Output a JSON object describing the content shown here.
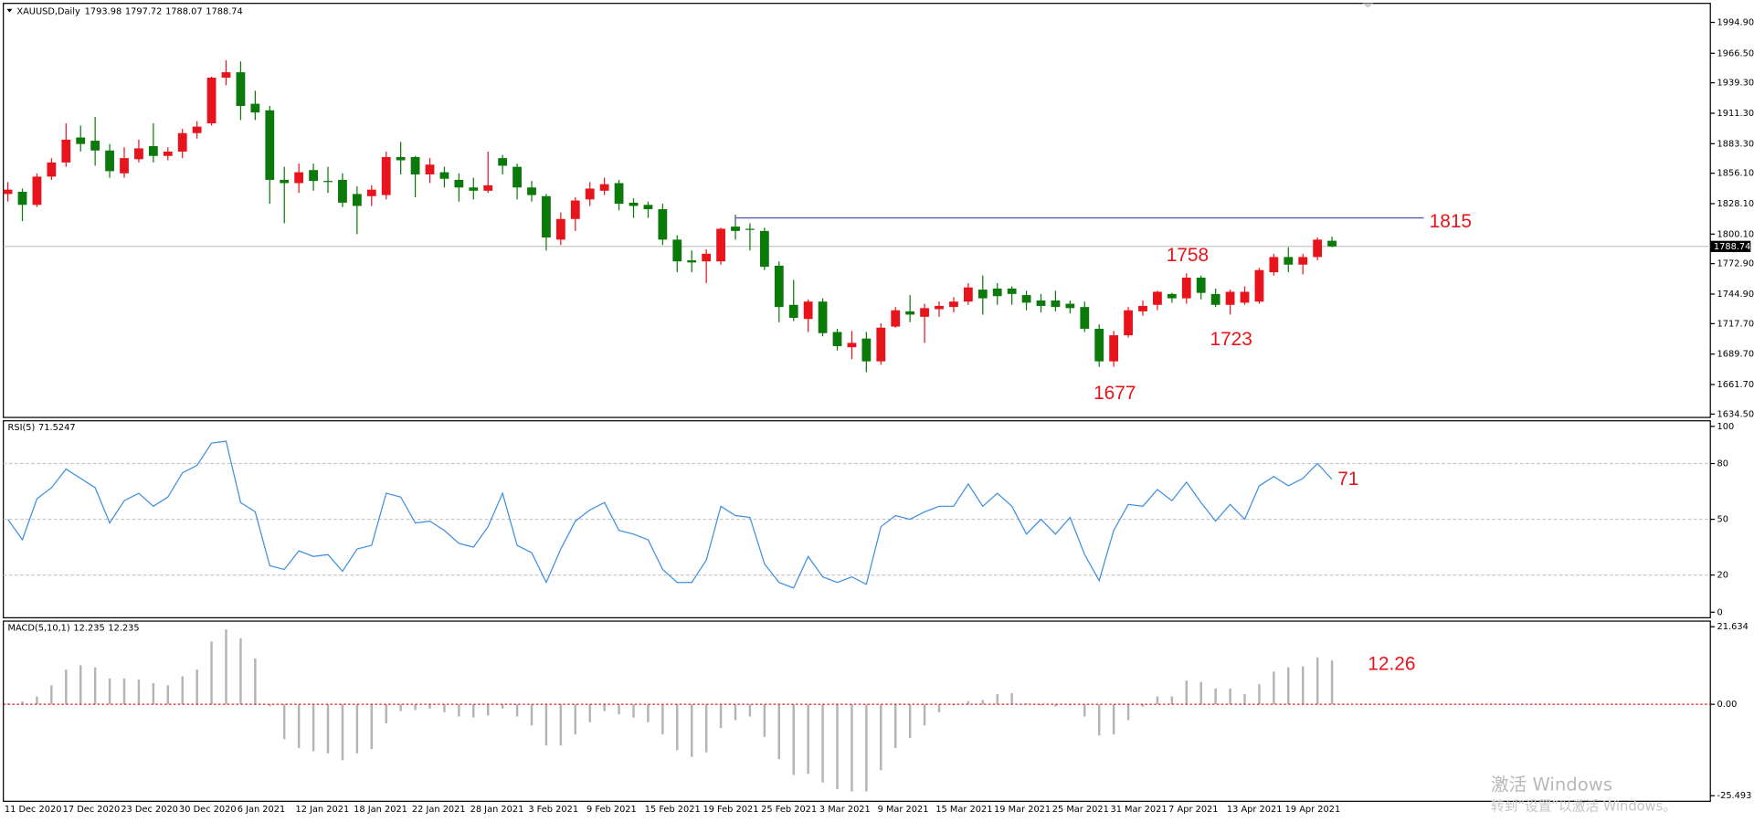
{
  "chart_data": [
    {
      "type": "candlestick",
      "title": "XAUUSD,Daily",
      "categories": [
        "11 Dec 2020",
        null,
        null,
        null,
        "17 Dec 2020",
        null,
        null,
        null,
        "23 Dec 2020",
        null,
        null,
        null,
        "30 Dec 2020",
        null,
        null,
        null,
        "6 Jan 2021",
        null,
        null,
        null,
        "12 Jan 2021",
        null,
        null,
        null,
        "18 Jan 2021",
        null,
        null,
        null,
        "22 Jan 2021",
        null,
        null,
        null,
        "28 Jan 2021",
        null,
        null,
        null,
        "3 Feb 2021",
        null,
        null,
        null,
        "9 Feb 2021",
        null,
        null,
        null,
        "15 Feb 2021",
        null,
        null,
        null,
        "19 Feb 2021",
        null,
        null,
        null,
        "25 Feb 2021",
        null,
        null,
        null,
        "3 Mar 2021",
        null,
        null,
        null,
        "9 Mar 2021",
        null,
        null,
        null,
        "15 Mar 2021",
        null,
        null,
        null,
        "19 Mar 2021",
        null,
        null,
        null,
        "25 Mar 2021",
        null,
        null,
        null,
        "31 Mar 2021",
        null,
        null,
        null,
        "7 Apr 2021",
        null,
        null,
        null,
        "13 Apr 2021",
        null,
        null,
        null,
        "19 Apr 2021",
        null,
        null,
        null
      ],
      "open": [
        1837,
        1839,
        1827,
        1853,
        1866,
        1889,
        1886,
        1877,
        1856,
        1869,
        1881,
        1872,
        1876,
        1893,
        1902,
        1944,
        1949,
        1920,
        1914,
        1850,
        1847,
        1859,
        1849,
        1850,
        1837,
        1835,
        1836,
        1871,
        1871,
        1855,
        1857,
        1850,
        1843,
        1840,
        1870,
        1862,
        1843,
        1835,
        1795,
        1814,
        1832,
        1840,
        1847,
        1829,
        1827,
        1823,
        1795,
        1776,
        1775,
        1775,
        1807,
        1805,
        1803,
        1771,
        1735,
        1722,
        1738,
        1710,
        1696,
        1704,
        1683,
        1715,
        1729,
        1724,
        1731,
        1733,
        1738,
        1749,
        1750,
        1750,
        1744,
        1739,
        1739,
        1736,
        1733,
        1713,
        1683,
        1707,
        1729,
        1735,
        1745,
        1741,
        1760,
        1745,
        1735,
        1737,
        1738,
        1765,
        1779,
        1772,
        1779,
        1793.98
      ],
      "high": [
        1848,
        1842,
        1856,
        1870,
        1902,
        1900,
        1908,
        1883,
        1880,
        1887,
        1902,
        1880,
        1897,
        1904,
        1945,
        1960,
        1959,
        1932,
        1918,
        1862,
        1865,
        1865,
        1862,
        1856,
        1844,
        1845,
        1876,
        1885,
        1872,
        1870,
        1862,
        1856,
        1852,
        1876,
        1873,
        1865,
        1849,
        1837,
        1820,
        1834,
        1848,
        1852,
        1850,
        1833,
        1830,
        1828,
        1799,
        1785,
        1786,
        1806,
        1818,
        1810,
        1806,
        1775,
        1758,
        1740,
        1741,
        1713,
        1711,
        1710,
        1718,
        1733,
        1744,
        1736,
        1738,
        1742,
        1755,
        1762,
        1755,
        1752,
        1748,
        1745,
        1748,
        1739,
        1738,
        1717,
        1711,
        1733,
        1739,
        1748,
        1746,
        1764,
        1762,
        1750,
        1749,
        1752,
        1769,
        1782,
        1788,
        1782,
        1797,
        1797.72
      ],
      "low": [
        1830,
        1812,
        1825,
        1850,
        1862,
        1876,
        1863,
        1852,
        1852,
        1866,
        1866,
        1868,
        1870,
        1888,
        1900,
        1937,
        1905,
        1905,
        1828,
        1810,
        1838,
        1840,
        1838,
        1825,
        1800,
        1826,
        1832,
        1855,
        1834,
        1847,
        1843,
        1830,
        1832,
        1838,
        1855,
        1832,
        1830,
        1785,
        1790,
        1803,
        1826,
        1836,
        1822,
        1815,
        1815,
        1790,
        1765,
        1765,
        1755,
        1772,
        1795,
        1785,
        1767,
        1719,
        1720,
        1710,
        1706,
        1693,
        1685,
        1673,
        1680,
        1714,
        1719,
        1700,
        1724,
        1728,
        1735,
        1726,
        1735,
        1735,
        1730,
        1728,
        1729,
        1727,
        1710,
        1678,
        1678,
        1705,
        1725,
        1730,
        1737,
        1736,
        1740,
        1733,
        1726,
        1735,
        1736,
        1762,
        1765,
        1763,
        1776,
        1788.07
      ],
      "close": [
        1841,
        1827,
        1853,
        1866,
        1887,
        1883,
        1877,
        1858,
        1870,
        1879,
        1872,
        1876,
        1893,
        1899,
        1944,
        1949,
        1918,
        1912,
        1850,
        1847,
        1857,
        1849,
        1848,
        1829,
        1826,
        1841,
        1871,
        1868,
        1855,
        1864,
        1851,
        1843,
        1840,
        1845,
        1863,
        1843,
        1836,
        1797,
        1814,
        1831,
        1842,
        1846,
        1828,
        1826,
        1823,
        1795,
        1775,
        1774,
        1782,
        1805,
        1803,
        1804,
        1770,
        1733,
        1723,
        1738,
        1709,
        1697,
        1700,
        1683,
        1714,
        1730,
        1726,
        1732,
        1734,
        1738,
        1751,
        1741,
        1743,
        1745,
        1737,
        1734,
        1733,
        1732,
        1713,
        1683,
        1707,
        1730,
        1734,
        1747,
        1741,
        1760,
        1746,
        1735,
        1747,
        1747,
        1767,
        1779,
        1772,
        1779,
        1795,
        1788.74
      ],
      "up_color": "#e8141c",
      "down_color": "#0b7a0b",
      "ylim": [
        1631.4,
        2012.4
      ],
      "yticks": [
        {
          "value": 1994.9,
          "label": "1994.90"
        },
        {
          "value": 1966.5,
          "label": "1966.50"
        },
        {
          "value": 1939.3,
          "label": "1939.30"
        },
        {
          "value": 1911.3,
          "label": "1911.30"
        },
        {
          "value": 1883.3,
          "label": "1883.30"
        },
        {
          "value": 1856.1,
          "label": "1856.10"
        },
        {
          "value": 1828.1,
          "label": "1828.10"
        },
        {
          "value": 1800.1,
          "label": "1800.10"
        },
        {
          "value": 1772.9,
          "label": "1772.90"
        },
        {
          "value": 1744.9,
          "label": "1744.90"
        },
        {
          "value": 1717.7,
          "label": "1717.70"
        },
        {
          "value": 1689.7,
          "label": "1689.70"
        },
        {
          "value": 1661.7,
          "label": "1661.70"
        },
        {
          "value": 1634.5,
          "label": "1634.50"
        }
      ],
      "hline": 1815,
      "hline_color": "#5a5ab4",
      "annotations": [
        1758,
        1723,
        1677
      ]
    },
    {
      "type": "line",
      "title": "RSI(5)",
      "values": [
        50,
        39,
        61,
        67,
        77,
        72,
        67,
        48,
        60,
        64,
        57,
        62,
        75,
        79,
        91,
        92,
        59,
        54,
        25,
        23,
        33,
        30,
        31,
        22,
        34,
        36,
        64,
        62,
        48,
        49,
        44,
        37,
        35,
        46,
        64,
        36,
        32,
        16,
        34,
        49,
        55,
        59,
        44,
        42,
        39,
        23,
        16,
        16,
        28,
        57,
        52,
        51,
        26,
        16,
        13,
        30,
        19,
        16,
        19,
        15,
        46,
        52,
        50,
        54,
        57,
        57,
        69,
        57,
        64,
        57,
        42,
        50,
        42,
        51,
        31,
        17,
        44,
        58,
        57,
        66,
        60,
        70,
        59,
        49,
        58,
        50,
        68,
        73,
        68,
        72,
        80,
        71.5247
      ],
      "color": "#3c8ee0",
      "ylim": [
        -3,
        103
      ],
      "yticks": [
        100,
        80,
        50,
        20,
        0
      ],
      "levels": [
        80,
        50,
        20
      ],
      "annotations": [
        71
      ]
    },
    {
      "type": "bar",
      "title": "MACD(5,10,1)",
      "values": [
        0.3,
        0.8,
        2.2,
        5.3,
        9.7,
        10.9,
        10.3,
        7.2,
        7.2,
        6.9,
        5.9,
        5.3,
        7.8,
        9.7,
        17.5,
        20.9,
        18.4,
        12.8,
        -0.5,
        -9.7,
        -12.2,
        -13.1,
        -13.7,
        -15.6,
        -13.7,
        -12.5,
        -5.3,
        -1.9,
        -1.6,
        -1.2,
        -2.2,
        -3.4,
        -3.7,
        -3.1,
        -1.2,
        -3.4,
        -5.9,
        -11.5,
        -11.5,
        -8.4,
        -5.0,
        -1.9,
        -2.8,
        -3.7,
        -5.0,
        -8.4,
        -12.8,
        -14.7,
        -13.4,
        -6.6,
        -4.4,
        -3.4,
        -9.1,
        -15.3,
        -19.7,
        -19.4,
        -21.8,
        -23.7,
        -24.3,
        -24.3,
        -18.4,
        -12.2,
        -9.4,
        -5.9,
        -2.2,
        -0.3,
        0.9,
        1.2,
        2.8,
        3.1,
        0.3,
        -0.3,
        -0.6,
        -0.3,
        -3.4,
        -8.7,
        -8.4,
        -4.4,
        -0.6,
        2.2,
        2.2,
        6.6,
        6.2,
        4.4,
        4.4,
        2.8,
        5.6,
        9.1,
        10.3,
        10.6,
        13.1,
        12.235
      ],
      "color": "#b4b4b4",
      "zero_color": "#e8141c",
      "ylim": [
        -27.05,
        23.2
      ],
      "yticks": [
        21.634,
        {
          "value": 0,
          "label": "0.00"
        },
        -25.493
      ],
      "annotations": [
        12.26
      ]
    }
  ],
  "watermark": {
    "line1": "激活 Windows",
    "line2": "转到“设置”以激活 Windows。"
  }
}
